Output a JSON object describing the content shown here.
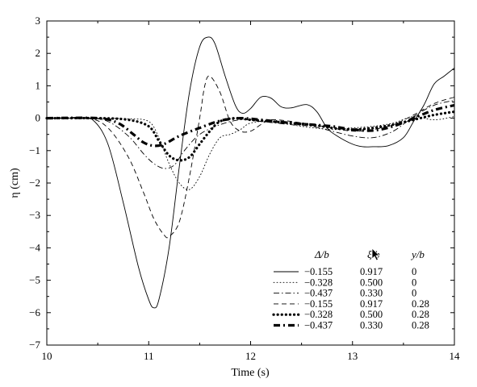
{
  "chart_data": {
    "type": "line",
    "xlabel": "Time (s)",
    "ylabel": "η (cm)",
    "xlim": [
      10,
      14
    ],
    "ylim": [
      -7,
      3
    ],
    "xticks": [
      "10",
      "11",
      "12",
      "13",
      "14"
    ],
    "yticks": [
      "3",
      "2",
      "1",
      "0",
      "−1",
      "−2",
      "−3",
      "−4",
      "−5",
      "−6",
      "−7"
    ],
    "grid": false,
    "legend_position": "bottom-right",
    "legend_headers": [
      "Δ/b",
      "ξ/b",
      "y/b"
    ],
    "series": [
      {
        "name": "−0.155",
        "xi": "0.917",
        "y": "0",
        "style": "solid",
        "points": [
          [
            10.0,
            0
          ],
          [
            10.3,
            0
          ],
          [
            10.45,
            -0.05
          ],
          [
            10.6,
            -0.8
          ],
          [
            10.75,
            -2.6
          ],
          [
            10.9,
            -4.6
          ],
          [
            11.0,
            -5.6
          ],
          [
            11.05,
            -5.85
          ],
          [
            11.1,
            -5.6
          ],
          [
            11.2,
            -4.0
          ],
          [
            11.3,
            -1.5
          ],
          [
            11.4,
            0.8
          ],
          [
            11.5,
            2.2
          ],
          [
            11.58,
            2.5
          ],
          [
            11.65,
            2.3
          ],
          [
            11.75,
            1.3
          ],
          [
            11.85,
            0.4
          ],
          [
            11.92,
            0.15
          ],
          [
            12.0,
            0.3
          ],
          [
            12.1,
            0.65
          ],
          [
            12.2,
            0.62
          ],
          [
            12.3,
            0.35
          ],
          [
            12.4,
            0.32
          ],
          [
            12.55,
            0.42
          ],
          [
            12.65,
            0.2
          ],
          [
            12.75,
            -0.3
          ],
          [
            12.85,
            -0.55
          ],
          [
            13.0,
            -0.8
          ],
          [
            13.1,
            -0.88
          ],
          [
            13.2,
            -0.88
          ],
          [
            13.35,
            -0.85
          ],
          [
            13.5,
            -0.6
          ],
          [
            13.6,
            -0.1
          ],
          [
            13.7,
            0.4
          ],
          [
            13.8,
            1.05
          ],
          [
            13.9,
            1.3
          ],
          [
            14.0,
            1.55
          ]
        ]
      },
      {
        "name": "−0.328",
        "xi": "0.500",
        "y": "0",
        "style": "dotted",
        "points": [
          [
            10.0,
            0
          ],
          [
            10.5,
            0
          ],
          [
            10.8,
            -0.02
          ],
          [
            11.0,
            -0.1
          ],
          [
            11.1,
            -0.6
          ],
          [
            11.2,
            -1.4
          ],
          [
            11.3,
            -2.0
          ],
          [
            11.4,
            -2.2
          ],
          [
            11.5,
            -1.8
          ],
          [
            11.6,
            -1.1
          ],
          [
            11.7,
            -0.6
          ],
          [
            11.8,
            -0.5
          ],
          [
            11.9,
            -0.35
          ],
          [
            12.0,
            -0.15
          ],
          [
            12.2,
            -0.1
          ],
          [
            12.5,
            -0.25
          ],
          [
            12.8,
            -0.35
          ],
          [
            13.0,
            -0.3
          ],
          [
            13.2,
            -0.25
          ],
          [
            13.4,
            -0.15
          ],
          [
            13.6,
            0.05
          ],
          [
            13.8,
            -0.05
          ],
          [
            14.0,
            0.05
          ]
        ]
      },
      {
        "name": "−0.437",
        "xi": "0.330",
        "y": "0",
        "style": "dashdot",
        "points": [
          [
            10.0,
            0
          ],
          [
            10.4,
            0
          ],
          [
            10.6,
            -0.1
          ],
          [
            10.8,
            -0.55
          ],
          [
            10.95,
            -1.1
          ],
          [
            11.05,
            -1.4
          ],
          [
            11.15,
            -1.55
          ],
          [
            11.25,
            -1.45
          ],
          [
            11.35,
            -1.0
          ],
          [
            11.5,
            -0.5
          ],
          [
            11.7,
            -0.2
          ],
          [
            11.9,
            -0.05
          ],
          [
            12.1,
            -0.1
          ],
          [
            12.4,
            -0.2
          ],
          [
            12.6,
            -0.25
          ],
          [
            12.8,
            -0.4
          ],
          [
            13.0,
            -0.55
          ],
          [
            13.2,
            -0.6
          ],
          [
            13.4,
            -0.4
          ],
          [
            13.6,
            0.05
          ],
          [
            13.8,
            0.4
          ],
          [
            14.0,
            0.55
          ]
        ]
      },
      {
        "name": "−0.155",
        "xi": "0.917",
        "y": "0.28",
        "style": "dashed",
        "points": [
          [
            10.0,
            0
          ],
          [
            10.4,
            0
          ],
          [
            10.6,
            -0.3
          ],
          [
            10.8,
            -1.2
          ],
          [
            10.95,
            -2.3
          ],
          [
            11.05,
            -3.1
          ],
          [
            11.15,
            -3.6
          ],
          [
            11.2,
            -3.65
          ],
          [
            11.3,
            -3.2
          ],
          [
            11.4,
            -1.8
          ],
          [
            11.5,
            0.0
          ],
          [
            11.55,
            1.0
          ],
          [
            11.6,
            1.3
          ],
          [
            11.7,
            0.8
          ],
          [
            11.8,
            -0.1
          ],
          [
            11.9,
            -0.4
          ],
          [
            12.0,
            -0.4
          ],
          [
            12.1,
            -0.2
          ],
          [
            12.2,
            -0.05
          ],
          [
            12.4,
            -0.1
          ],
          [
            12.6,
            -0.2
          ],
          [
            12.8,
            -0.3
          ],
          [
            13.0,
            -0.4
          ],
          [
            13.2,
            -0.35
          ],
          [
            13.4,
            -0.2
          ],
          [
            13.6,
            0.1
          ],
          [
            13.8,
            0.45
          ],
          [
            14.0,
            0.65
          ]
        ]
      },
      {
        "name": "−0.328",
        "xi": "0.500",
        "y": "0.28",
        "style": "thick-dotted",
        "points": [
          [
            10.0,
            0
          ],
          [
            10.5,
            0
          ],
          [
            10.8,
            -0.05
          ],
          [
            11.0,
            -0.25
          ],
          [
            11.1,
            -0.7
          ],
          [
            11.2,
            -1.15
          ],
          [
            11.3,
            -1.3
          ],
          [
            11.4,
            -1.2
          ],
          [
            11.5,
            -0.8
          ],
          [
            11.6,
            -0.4
          ],
          [
            11.7,
            -0.1
          ],
          [
            11.85,
            0.0
          ],
          [
            12.0,
            -0.05
          ],
          [
            12.2,
            -0.1
          ],
          [
            12.4,
            -0.15
          ],
          [
            12.6,
            -0.2
          ],
          [
            12.8,
            -0.3
          ],
          [
            13.0,
            -0.35
          ],
          [
            13.2,
            -0.3
          ],
          [
            13.4,
            -0.2
          ],
          [
            13.6,
            -0.05
          ],
          [
            13.8,
            0.1
          ],
          [
            14.0,
            0.2
          ]
        ]
      },
      {
        "name": "−0.437",
        "xi": "0.330",
        "y": "0.28",
        "style": "thick-dashdot",
        "points": [
          [
            10.0,
            0
          ],
          [
            10.5,
            0
          ],
          [
            10.7,
            -0.15
          ],
          [
            10.85,
            -0.5
          ],
          [
            10.95,
            -0.75
          ],
          [
            11.05,
            -0.85
          ],
          [
            11.15,
            -0.8
          ],
          [
            11.3,
            -0.55
          ],
          [
            11.5,
            -0.3
          ],
          [
            11.7,
            -0.08
          ],
          [
            11.9,
            0.0
          ],
          [
            12.1,
            -0.05
          ],
          [
            12.4,
            -0.15
          ],
          [
            12.6,
            -0.2
          ],
          [
            12.8,
            -0.25
          ],
          [
            13.0,
            -0.35
          ],
          [
            13.2,
            -0.38
          ],
          [
            13.4,
            -0.25
          ],
          [
            13.6,
            0.0
          ],
          [
            13.8,
            0.25
          ],
          [
            14.0,
            0.4
          ]
        ]
      }
    ]
  }
}
